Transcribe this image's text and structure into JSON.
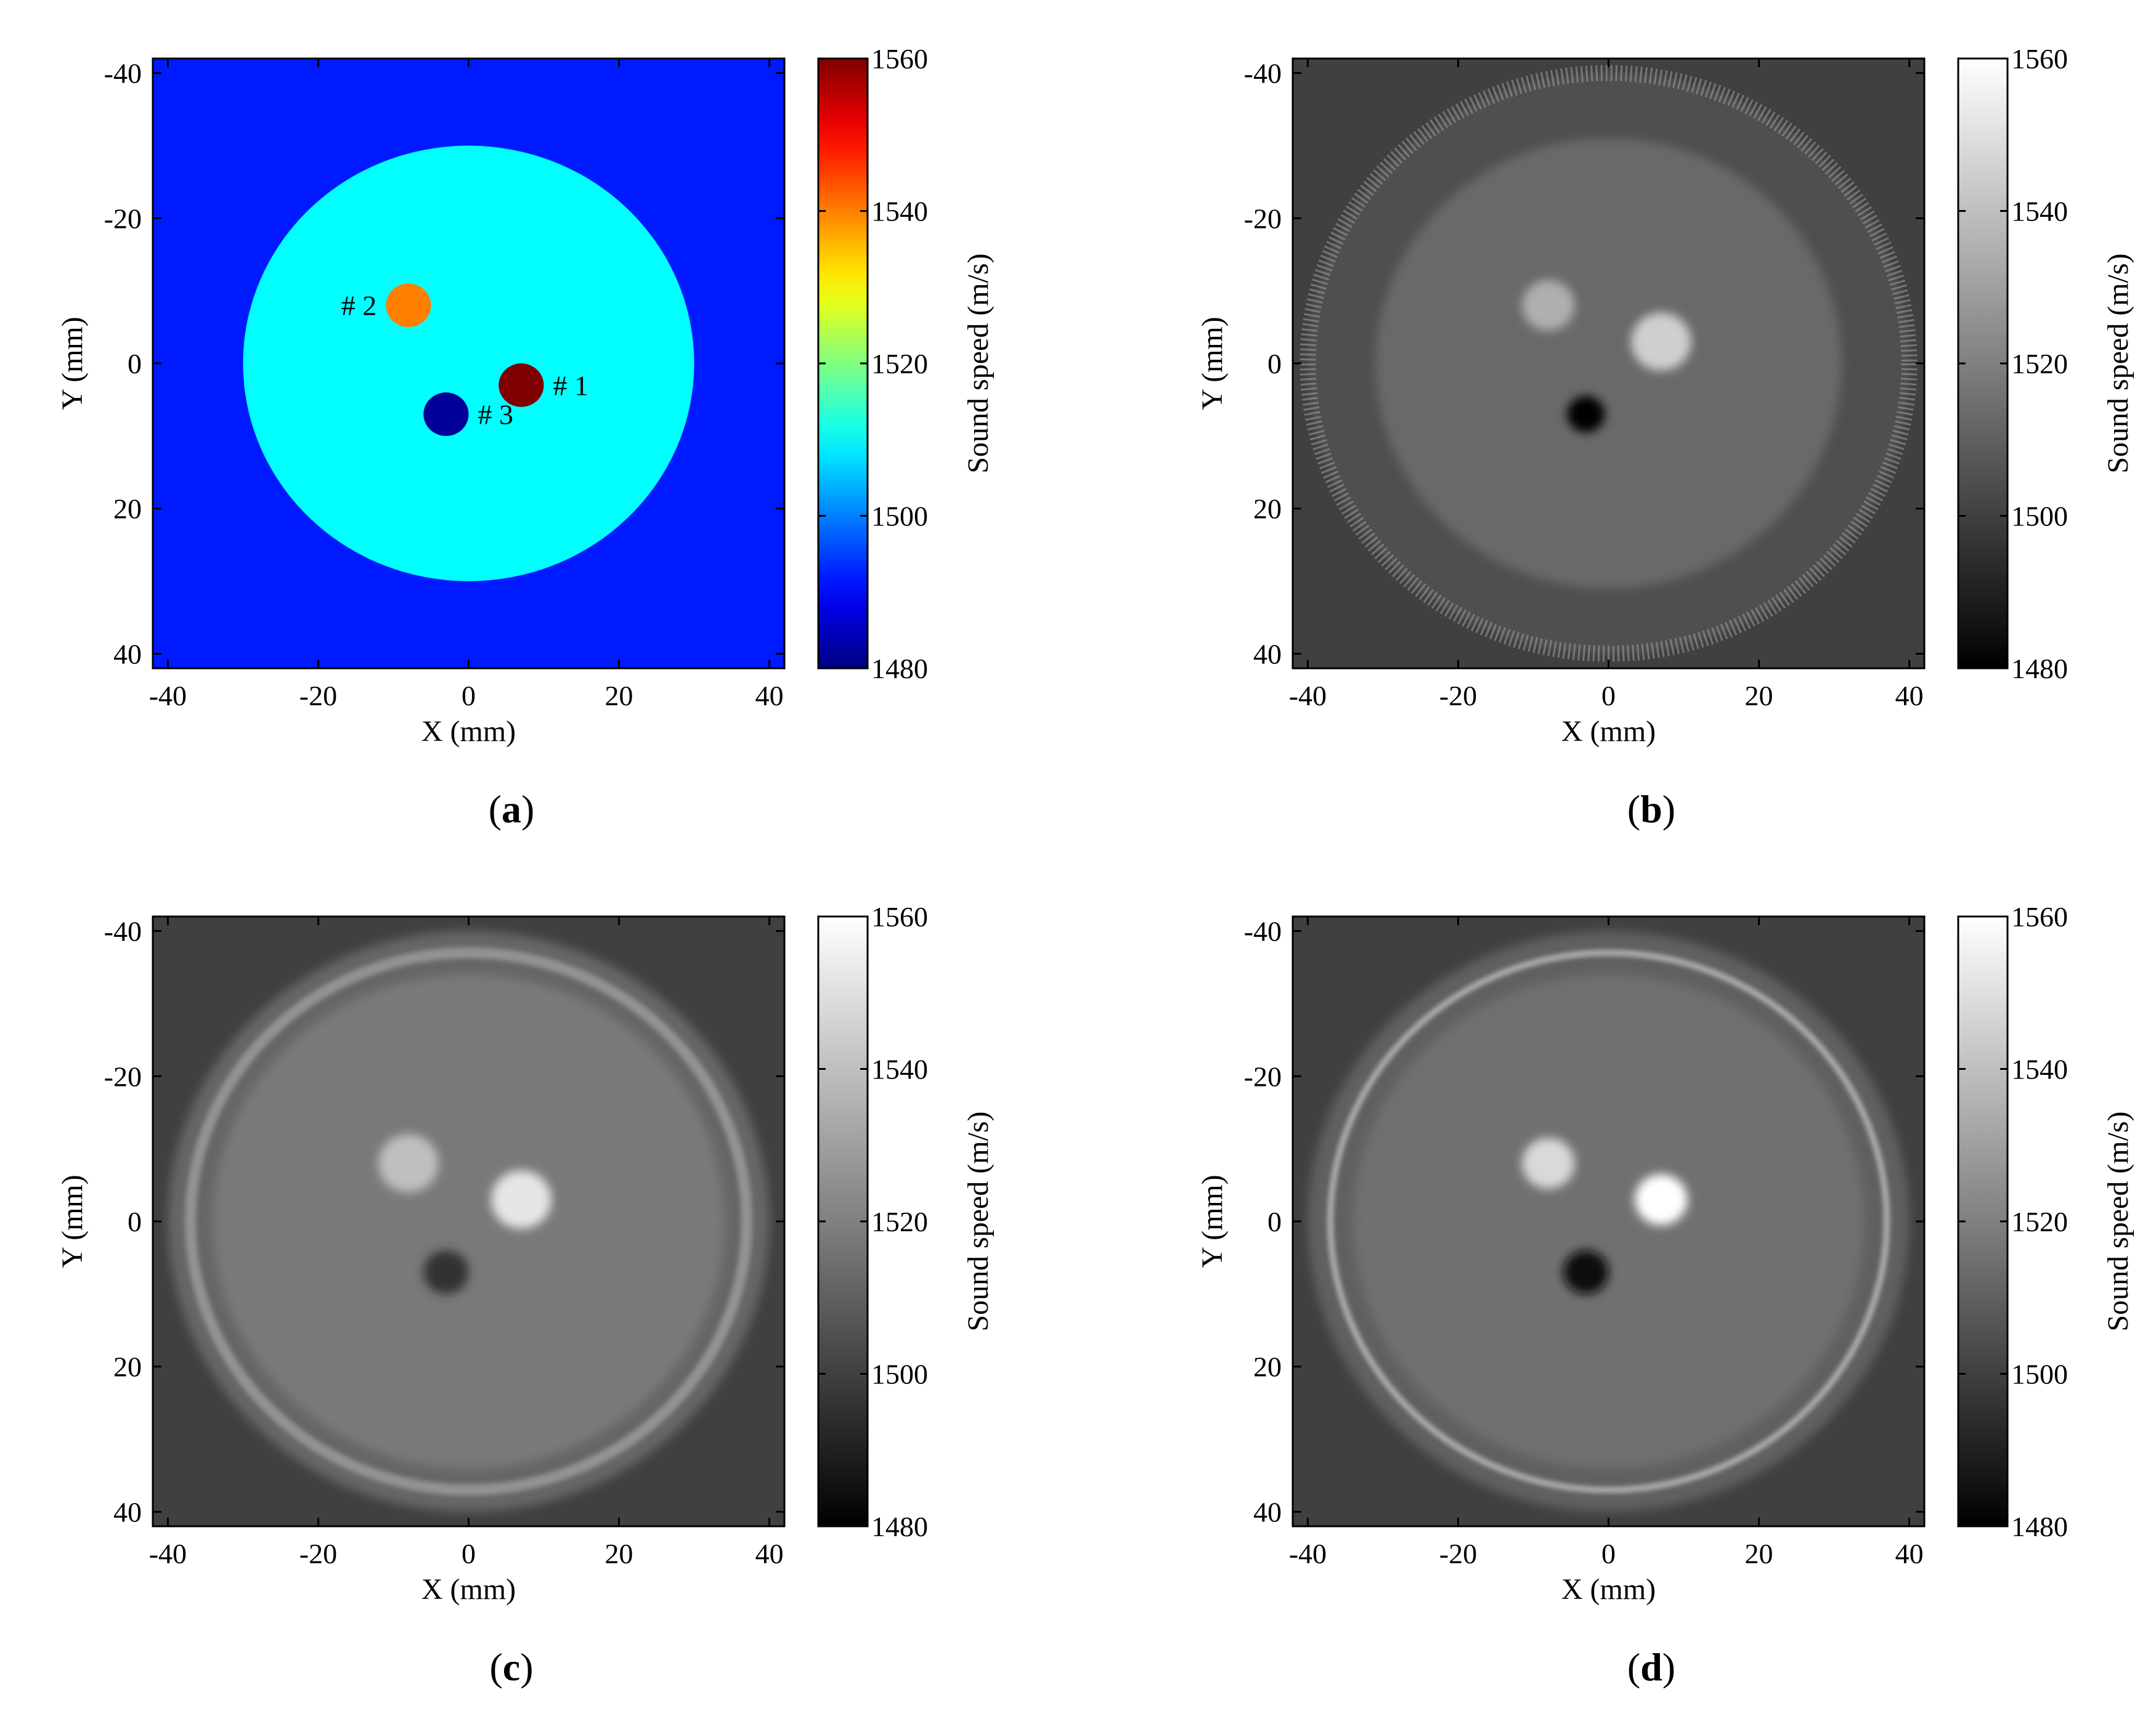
{
  "chart_data": [
    {
      "panel": "a",
      "type": "heatmap",
      "colormap": "jet",
      "xlabel": "X (mm)",
      "ylabel": "Y (mm)",
      "xlim": [
        -42,
        42
      ],
      "ylim": [
        -42,
        42
      ],
      "y_axis_reversed": true,
      "xticks": [
        -40,
        -20,
        0,
        20,
        40
      ],
      "yticks": [
        -40,
        -20,
        0,
        20,
        40
      ],
      "colorbar": {
        "label": "Sound speed (m/s)",
        "range": [
          1480,
          1560
        ],
        "ticks": [
          1480,
          1500,
          1520,
          1540,
          1560
        ]
      },
      "background_value": 1492,
      "phantom": {
        "center": [
          0,
          0
        ],
        "radius": 30,
        "value": 1510
      },
      "inclusions": [
        {
          "label": "# 1",
          "center": [
            7,
            3
          ],
          "radius": 3,
          "value": 1560
        },
        {
          "label": "# 2",
          "center": [
            -8,
            -8
          ],
          "radius": 3,
          "value": 1540
        },
        {
          "label": "# 3",
          "center": [
            -3,
            7
          ],
          "radius": 3,
          "value": 1482
        }
      ],
      "panel_label": "a"
    },
    {
      "panel": "b",
      "type": "heatmap",
      "colormap": "gray",
      "xlabel": "X (mm)",
      "ylabel": "Y (mm)",
      "xlim": [
        -42,
        42
      ],
      "ylim": [
        -42,
        42
      ],
      "y_axis_reversed": true,
      "xticks": [
        -40,
        -20,
        0,
        20,
        40
      ],
      "yticks": [
        -40,
        -20,
        0,
        20,
        40
      ],
      "colorbar": {
        "label": "Sound speed (m/s)",
        "range": [
          1480,
          1560
        ],
        "ticks": [
          1480,
          1500,
          1520,
          1540,
          1560
        ]
      },
      "background_value": 1500,
      "phantom": {
        "center": [
          0,
          0
        ],
        "radius": 40,
        "value": 1513,
        "ring_value": 1505,
        "ring_inner_radius": 31
      },
      "inclusions": [
        {
          "center": [
            7,
            -3
          ],
          "radius": 4,
          "value": 1545
        },
        {
          "center": [
            -8,
            -8
          ],
          "radius": 3.5,
          "value": 1535
        },
        {
          "center": [
            -3,
            7
          ],
          "radius": 2.5,
          "value": 1482
        }
      ],
      "panel_label": "b"
    },
    {
      "panel": "c",
      "type": "heatmap",
      "colormap": "gray",
      "xlabel": "X (mm)",
      "ylabel": "Y (mm)",
      "xlim": [
        -42,
        42
      ],
      "ylim": [
        -42,
        42
      ],
      "y_axis_reversed": true,
      "xticks": [
        -40,
        -20,
        0,
        20,
        40
      ],
      "yticks": [
        -40,
        -20,
        0,
        20,
        40
      ],
      "colorbar": {
        "label": "Sound speed (m/s)",
        "range": [
          1480,
          1560
        ],
        "ticks": [
          1480,
          1500,
          1520,
          1540,
          1560
        ]
      },
      "background_value": 1500,
      "phantom": {
        "center": [
          0,
          0
        ],
        "radius": 40,
        "value": 1518,
        "ring_value": 1512,
        "ring_inner_radius": 34
      },
      "inclusions": [
        {
          "center": [
            7,
            -3
          ],
          "radius": 4,
          "value": 1552
        },
        {
          "center": [
            -8,
            -8
          ],
          "radius": 4,
          "value": 1540
        },
        {
          "center": [
            -3,
            7
          ],
          "radius": 3,
          "value": 1495
        }
      ],
      "panel_label": "c"
    },
    {
      "panel": "d",
      "type": "heatmap",
      "colormap": "gray",
      "xlabel": "X (mm)",
      "ylabel": "Y (mm)",
      "xlim": [
        -42,
        42
      ],
      "ylim": [
        -42,
        42
      ],
      "y_axis_reversed": true,
      "xticks": [
        -40,
        -20,
        0,
        20,
        40
      ],
      "yticks": [
        -40,
        -20,
        0,
        20,
        40
      ],
      "colorbar": {
        "label": "Sound speed (m/s)",
        "range": [
          1480,
          1560
        ],
        "ticks": [
          1480,
          1500,
          1520,
          1540,
          1560
        ]
      },
      "background_value": 1500,
      "phantom": {
        "center": [
          0,
          0
        ],
        "radius": 40,
        "value": 1515,
        "ring_value": 1510,
        "ring_inner_radius": 34
      },
      "inclusions": [
        {
          "center": [
            7,
            -3
          ],
          "radius": 3.5,
          "value": 1560
        },
        {
          "center": [
            -8,
            -8
          ],
          "radius": 3.5,
          "value": 1548
        },
        {
          "center": [
            -3,
            7
          ],
          "radius": 3,
          "value": 1484
        }
      ],
      "panel_label": "d"
    }
  ],
  "colors": {
    "gray_background": "#3c3c3c",
    "jet_background": "#0090ff",
    "jet_phantom": "#00ffe8"
  }
}
